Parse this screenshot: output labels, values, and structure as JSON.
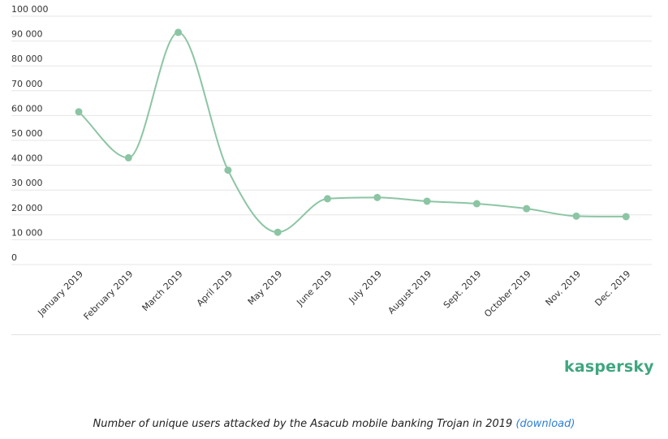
{
  "chart_data": {
    "type": "line",
    "categories": [
      "January 2019",
      "February 2019",
      "March 2019",
      "April 2019",
      "May 2019",
      "June 2019",
      "July 2019",
      "August 2019",
      "Sept. 2019",
      "October 2019",
      "Nov. 2019",
      "Dec. 2019"
    ],
    "series": [
      {
        "values": [
          61500,
          43000,
          93500,
          38000,
          13000,
          26500,
          27000,
          25500,
          24500,
          22500,
          19500,
          19300
        ]
      }
    ],
    "ylim": [
      0,
      100000
    ],
    "yticks": [
      0,
      10000,
      20000,
      30000,
      40000,
      50000,
      60000,
      70000,
      80000,
      90000,
      100000
    ],
    "ytick_labels": [
      "0",
      "10 000",
      "20 000",
      "30 000",
      "40 000",
      "50 000",
      "60 000",
      "70 000",
      "80 000",
      "90 000",
      "100 000"
    ],
    "grid": true,
    "color": "#8cc5a4"
  },
  "logo": {
    "text": "kaspersky",
    "color": "#3fa67f"
  },
  "caption": {
    "text": "Number of unique users attacked by the Asacub mobile banking Trojan in 2019",
    "link": "(download)"
  }
}
